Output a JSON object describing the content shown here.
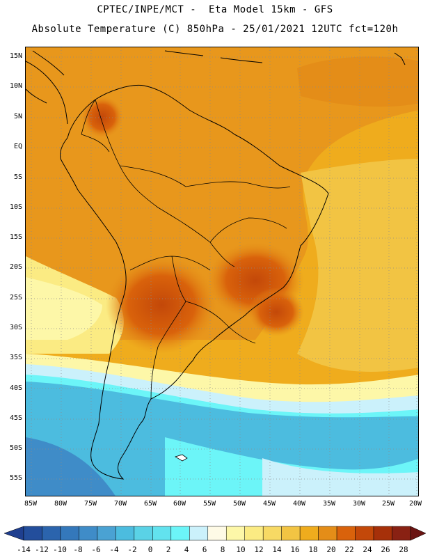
{
  "header": {
    "line1": "CPTEC/INPE/MCT -  Eta Model 15km - GFS",
    "line2": "Absolute Temperature (C) 850hPa - 25/01/2021 12UTC fct=120h"
  },
  "map": {
    "lat_labels": [
      "15N",
      "10N",
      "5N",
      "EQ",
      "5S",
      "10S",
      "15S",
      "20S",
      "25S",
      "30S",
      "35S",
      "40S",
      "45S",
      "50S",
      "55S"
    ],
    "lon_labels": [
      "85W",
      "80W",
      "75W",
      "70W",
      "65W",
      "60W",
      "55W",
      "50W",
      "45W",
      "40W",
      "35W",
      "30W",
      "25W",
      "20W"
    ]
  },
  "colorbar": {
    "labels": [
      "-14",
      "-12",
      "-10",
      "-8",
      "-6",
      "-4",
      "-2",
      "0",
      "2",
      "4",
      "6",
      "8",
      "10",
      "12",
      "14",
      "16",
      "18",
      "20",
      "22",
      "24",
      "26",
      "28"
    ],
    "colors": [
      "#1f3f8f",
      "#234e9c",
      "#2b64ad",
      "#3478bb",
      "#3f8cc8",
      "#4aa2d3",
      "#4cbcdf",
      "#5ad2e6",
      "#62e2ee",
      "#6cf5f8",
      "#cbf1fb",
      "#fefae6",
      "#fdf7a8",
      "#fbeb83",
      "#f7d964",
      "#f2c443",
      "#efac1d",
      "#e48d18",
      "#d9620b",
      "#c34809",
      "#a63009",
      "#892113",
      "#6a1412"
    ]
  }
}
